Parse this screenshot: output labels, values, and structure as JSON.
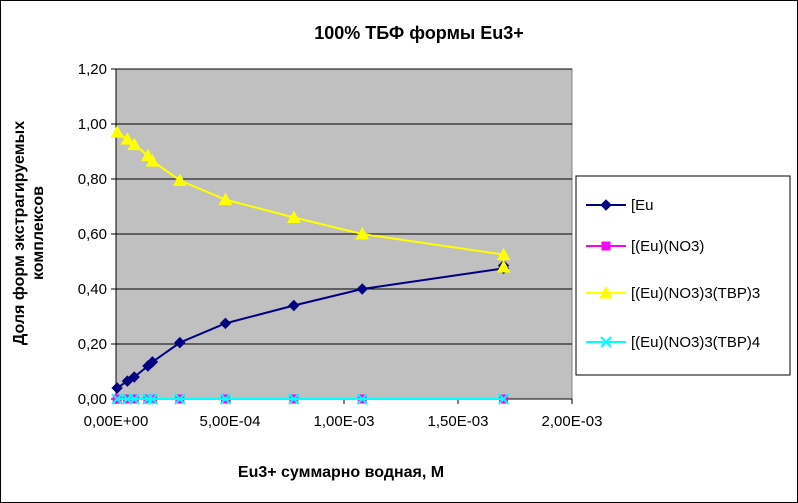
{
  "chart_data": {
    "type": "line",
    "title": "100%  ТБФ  формы Eu3+",
    "xlabel": "Eu3+ суммарно   водная, М",
    "ylabel_line1": "Доля форм экстрагируемых",
    "ylabel_line2": "комплексов",
    "xlim": [
      0,
      0.002
    ],
    "ylim": [
      0,
      1.2
    ],
    "x_ticks": [
      0,
      0.0005,
      0.001,
      0.0015,
      0.002
    ],
    "x_tick_labels": [
      "0,00E+00",
      "5,00E-04",
      "1,00E-03",
      "1,50E-03",
      "2,00E-03"
    ],
    "y_ticks": [
      0,
      0.2,
      0.4,
      0.6,
      0.8,
      1.0,
      1.2
    ],
    "y_tick_labels": [
      "0,00",
      "0,20",
      "0,40",
      "0,60",
      "0,80",
      "1,00",
      "1,20"
    ],
    "grid": "horizontal",
    "plot_background": "#c0c0c0",
    "legend_position": "right",
    "series": [
      {
        "name": "[Eu",
        "color": "#000080",
        "marker": "diamond",
        "x": [
          5e-06,
          5e-05,
          8e-05,
          0.00014,
          0.00016,
          0.00028,
          0.00048,
          0.00078,
          0.00108,
          0.0017,
          0.0017
        ],
        "y": [
          0.04,
          0.065,
          0.08,
          0.12,
          0.135,
          0.205,
          0.275,
          0.34,
          0.4,
          0.475,
          0.485
        ]
      },
      {
        "name": "[(Eu)(NO3)",
        "color": "#ff00ff",
        "marker": "square",
        "x": [
          5e-06,
          5e-05,
          8e-05,
          0.00014,
          0.00016,
          0.00028,
          0.00048,
          0.00078,
          0.00108,
          0.0017
        ],
        "y": [
          0,
          0,
          0,
          0,
          0,
          0,
          0,
          0,
          0,
          0
        ]
      },
      {
        "name": "[(Eu)(NO3)3(TBP)3",
        "color": "#ffff00",
        "marker": "triangle",
        "x": [
          5e-06,
          5e-05,
          8e-05,
          0.00014,
          0.00016,
          0.00028,
          0.00048,
          0.00078,
          0.00108,
          0.0017,
          0.0017
        ],
        "y": [
          0.97,
          0.945,
          0.925,
          0.885,
          0.865,
          0.795,
          0.725,
          0.66,
          0.6,
          0.525,
          0.48
        ]
      },
      {
        "name": "[(Eu)(NO3)3(TBP)4",
        "color": "#00ffff",
        "marker": "x",
        "x": [
          5e-06,
          5e-05,
          8e-05,
          0.00014,
          0.00016,
          0.00028,
          0.00048,
          0.00078,
          0.00108,
          0.0017
        ],
        "y": [
          0,
          0,
          0,
          0,
          0,
          0,
          0,
          0,
          0,
          0
        ]
      }
    ]
  }
}
